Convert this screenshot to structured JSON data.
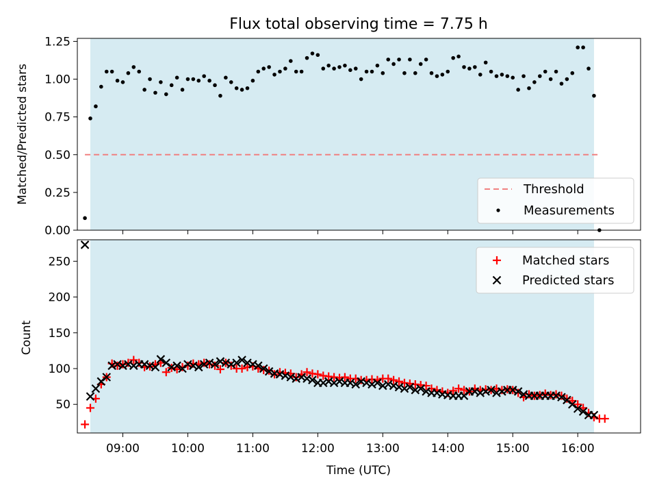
{
  "title": "Flux total observing time = 7.75 h",
  "xlabel": "Time (UTC)",
  "x_tick_labels": [
    "09:00",
    "10:00",
    "11:00",
    "12:00",
    "13:00",
    "14:00",
    "15:00",
    "16:00"
  ],
  "colors": {
    "shade": "#add8e6",
    "threshold": "#f08080",
    "measurement": "#000000",
    "matched": "#ff0000",
    "predicted": "#000000"
  },
  "chart_data": [
    {
      "type": "scatter",
      "ylabel": "Matched/Predicted stars",
      "xlim": [
        "08:18",
        "16:58"
      ],
      "ylim": [
        0,
        1.27
      ],
      "y_tick_labels": [
        "0.00",
        "0.25",
        "0.50",
        "0.75",
        "1.00",
        "1.25"
      ],
      "shaded_interval": [
        "08:30",
        "16:15"
      ],
      "threshold": {
        "name": "Threshold",
        "x_range": [
          "08:25",
          "16:20"
        ],
        "y": 0.5
      },
      "legend": {
        "position": "lower-right",
        "entries": [
          "Threshold",
          "Measurements"
        ]
      },
      "series": [
        {
          "name": "Measurements",
          "x": [
            "08:25",
            "08:30",
            "08:35",
            "08:40",
            "08:45",
            "08:50",
            "08:55",
            "09:00",
            "09:05",
            "09:10",
            "09:15",
            "09:20",
            "09:25",
            "09:30",
            "09:35",
            "09:40",
            "09:45",
            "09:50",
            "09:55",
            "10:00",
            "10:05",
            "10:10",
            "10:15",
            "10:20",
            "10:25",
            "10:30",
            "10:35",
            "10:40",
            "10:45",
            "10:50",
            "10:55",
            "11:00",
            "11:05",
            "11:10",
            "11:15",
            "11:20",
            "11:25",
            "11:30",
            "11:35",
            "11:40",
            "11:45",
            "11:50",
            "11:55",
            "12:00",
            "12:05",
            "12:10",
            "12:15",
            "12:20",
            "12:25",
            "12:30",
            "12:35",
            "12:40",
            "12:45",
            "12:50",
            "12:55",
            "13:00",
            "13:05",
            "13:10",
            "13:15",
            "13:20",
            "13:25",
            "13:30",
            "13:35",
            "13:40",
            "13:45",
            "13:50",
            "13:55",
            "14:00",
            "14:05",
            "14:10",
            "14:15",
            "14:20",
            "14:25",
            "14:30",
            "14:35",
            "14:40",
            "14:45",
            "14:50",
            "14:55",
            "15:00",
            "15:05",
            "15:10",
            "15:15",
            "15:20",
            "15:25",
            "15:30",
            "15:35",
            "15:40",
            "15:45",
            "15:50",
            "15:55",
            "16:00",
            "16:05",
            "16:10",
            "16:15",
            "16:20"
          ],
          "y": [
            0.08,
            0.74,
            0.82,
            0.95,
            1.05,
            1.05,
            0.99,
            0.98,
            1.04,
            1.08,
            1.05,
            0.93,
            1.0,
            0.91,
            0.98,
            0.9,
            0.96,
            1.01,
            0.93,
            1.0,
            1.0,
            0.99,
            1.02,
            0.99,
            0.96,
            0.89,
            1.01,
            0.98,
            0.94,
            0.93,
            0.94,
            0.99,
            1.05,
            1.07,
            1.08,
            1.03,
            1.05,
            1.07,
            1.12,
            1.05,
            1.05,
            1.14,
            1.17,
            1.16,
            1.07,
            1.09,
            1.07,
            1.08,
            1.09,
            1.06,
            1.07,
            1.0,
            1.05,
            1.05,
            1.09,
            1.04,
            1.13,
            1.1,
            1.13,
            1.04,
            1.13,
            1.04,
            1.1,
            1.13,
            1.04,
            1.02,
            1.03,
            1.05,
            1.14,
            1.15,
            1.08,
            1.07,
            1.08,
            1.03,
            1.11,
            1.05,
            1.02,
            1.03,
            1.02,
            1.01,
            0.93,
            1.02,
            0.94,
            0.98,
            1.02,
            1.05,
            1.0,
            1.05,
            0.97,
            1.0,
            1.04,
            1.21,
            1.21,
            1.07,
            0.89,
            0.0
          ]
        }
      ]
    },
    {
      "type": "scatter",
      "ylabel": "Count",
      "xlim": [
        "08:18",
        "16:58"
      ],
      "ylim": [
        10,
        280
      ],
      "y_tick_labels": [
        "50",
        "100",
        "150",
        "200",
        "250"
      ],
      "shaded_interval": [
        "08:30",
        "16:15"
      ],
      "legend": {
        "position": "top-right",
        "entries": [
          "Matched stars",
          "Predicted stars"
        ]
      },
      "series": [
        {
          "name": "Matched stars",
          "x": [
            "08:25",
            "08:30",
            "08:35",
            "08:40",
            "08:45",
            "08:50",
            "08:55",
            "09:00",
            "09:05",
            "09:10",
            "09:15",
            "09:20",
            "09:25",
            "09:30",
            "09:35",
            "09:40",
            "09:45",
            "09:50",
            "09:55",
            "10:00",
            "10:05",
            "10:10",
            "10:15",
            "10:20",
            "10:25",
            "10:30",
            "10:35",
            "10:40",
            "10:45",
            "10:50",
            "10:55",
            "11:00",
            "11:05",
            "11:10",
            "11:15",
            "11:20",
            "11:25",
            "11:30",
            "11:35",
            "11:40",
            "11:45",
            "11:50",
            "11:55",
            "12:00",
            "12:05",
            "12:10",
            "12:15",
            "12:20",
            "12:25",
            "12:30",
            "12:35",
            "12:40",
            "12:45",
            "12:50",
            "12:55",
            "13:00",
            "13:05",
            "13:10",
            "13:15",
            "13:20",
            "13:25",
            "13:30",
            "13:35",
            "13:40",
            "13:45",
            "13:50",
            "13:55",
            "14:00",
            "14:05",
            "14:10",
            "14:15",
            "14:20",
            "14:25",
            "14:30",
            "14:35",
            "14:40",
            "14:45",
            "14:50",
            "14:55",
            "15:00",
            "15:05",
            "15:10",
            "15:15",
            "15:20",
            "15:25",
            "15:30",
            "15:35",
            "15:40",
            "15:45",
            "15:50",
            "15:55",
            "16:00",
            "16:05",
            "16:10",
            "16:15",
            "16:20",
            "16:25"
          ],
          "y": [
            22,
            45,
            58,
            78,
            88,
            107,
            104,
            106,
            108,
            112,
            108,
            102,
            103,
            106,
            108,
            95,
            101,
            99,
            102,
            104,
            107,
            106,
            108,
            106,
            104,
            99,
            108,
            104,
            100,
            100,
            102,
            103,
            100,
            98,
            97,
            92,
            95,
            94,
            93,
            88,
            92,
            95,
            93,
            92,
            90,
            89,
            88,
            87,
            88,
            86,
            86,
            84,
            84,
            85,
            84,
            86,
            86,
            84,
            82,
            80,
            79,
            78,
            77,
            76,
            72,
            70,
            68,
            66,
            69,
            72,
            70,
            68,
            72,
            70,
            71,
            70,
            72,
            70,
            71,
            70,
            66,
            60,
            64,
            62,
            63,
            65,
            63,
            64,
            62,
            58,
            55,
            50,
            45,
            38,
            32,
            30,
            30
          ]
        },
        {
          "name": "Predicted stars",
          "x": [
            "08:25",
            "08:30",
            "08:35",
            "08:40",
            "08:45",
            "08:50",
            "08:55",
            "09:00",
            "09:05",
            "09:10",
            "09:15",
            "09:20",
            "09:25",
            "09:30",
            "09:35",
            "09:40",
            "09:45",
            "09:50",
            "09:55",
            "10:00",
            "10:05",
            "10:10",
            "10:15",
            "10:20",
            "10:25",
            "10:30",
            "10:35",
            "10:40",
            "10:45",
            "10:50",
            "10:55",
            "11:00",
            "11:05",
            "11:10",
            "11:15",
            "11:20",
            "11:25",
            "11:30",
            "11:35",
            "11:40",
            "11:45",
            "11:50",
            "11:55",
            "12:00",
            "12:05",
            "12:10",
            "12:15",
            "12:20",
            "12:25",
            "12:30",
            "12:35",
            "12:40",
            "12:45",
            "12:50",
            "12:55",
            "13:00",
            "13:05",
            "13:10",
            "13:15",
            "13:20",
            "13:25",
            "13:30",
            "13:35",
            "13:40",
            "13:45",
            "13:50",
            "13:55",
            "14:00",
            "14:05",
            "14:10",
            "14:15",
            "14:20",
            "14:25",
            "14:30",
            "14:35",
            "14:40",
            "14:45",
            "14:50",
            "14:55",
            "15:00",
            "15:05",
            "15:10",
            "15:15",
            "15:20",
            "15:25",
            "15:30",
            "15:35",
            "15:40",
            "15:45",
            "15:50",
            "15:55",
            "16:00",
            "16:05",
            "16:10",
            "16:15"
          ],
          "y": [
            273,
            61,
            72,
            82,
            88,
            104,
            106,
            104,
            106,
            104,
            106,
            106,
            104,
            102,
            113,
            108,
            102,
            104,
            100,
            106,
            104,
            102,
            106,
            108,
            106,
            110,
            108,
            106,
            108,
            112,
            108,
            106,
            104,
            100,
            96,
            93,
            92,
            90,
            88,
            86,
            88,
            86,
            84,
            80,
            80,
            82,
            80,
            82,
            80,
            80,
            78,
            82,
            80,
            78,
            80,
            76,
            78,
            76,
            74,
            72,
            74,
            70,
            72,
            68,
            66,
            66,
            64,
            63,
            62,
            62,
            62,
            68,
            68,
            66,
            68,
            70,
            66,
            68,
            70,
            70,
            68,
            64,
            62,
            62,
            62,
            62,
            62,
            62,
            60,
            56,
            50,
            44,
            40,
            35,
            35
          ]
        }
      ]
    }
  ]
}
